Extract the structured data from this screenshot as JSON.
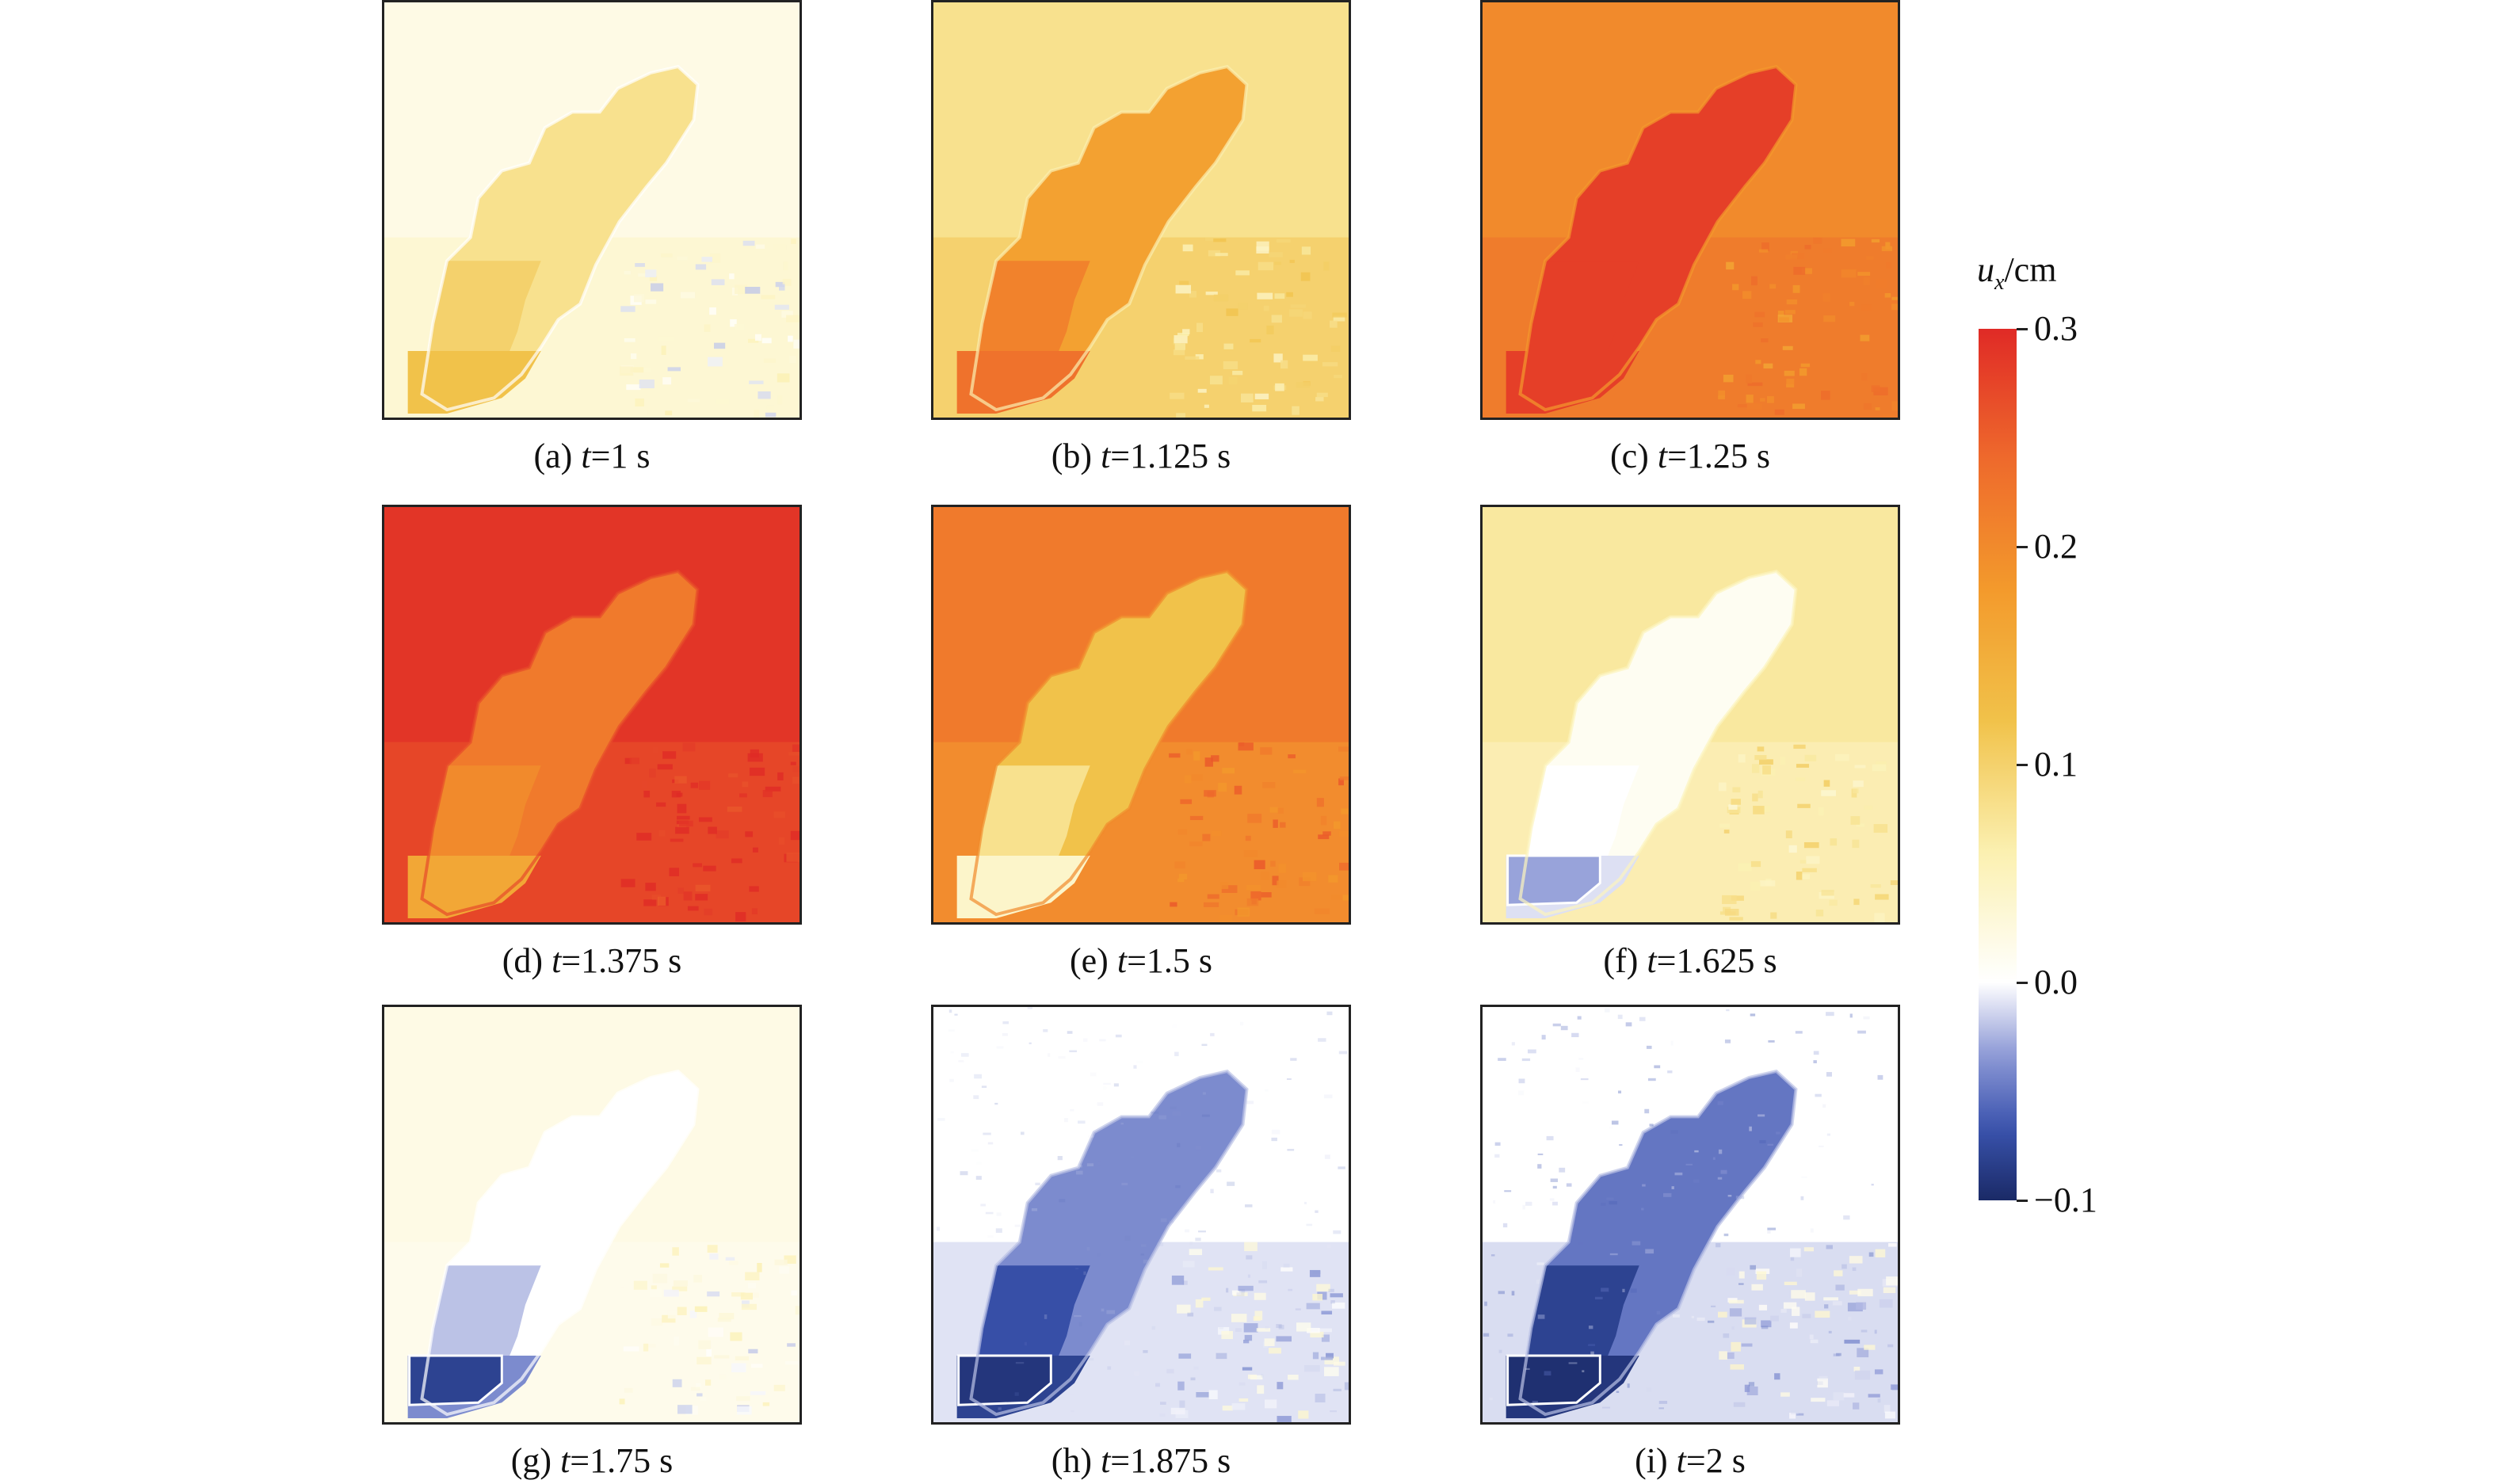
{
  "chart_data": {
    "type": "heatmap",
    "quantity_symbol": "u",
    "quantity_subscript": "x",
    "quantity_unit": "/cm",
    "colorbar": {
      "vmin": -0.1,
      "vmax": 0.3,
      "ticks": [
        0.3,
        0.2,
        0.1,
        0.0,
        -0.1
      ],
      "tick_labels": [
        "0.3",
        "0.2",
        "0.1",
        "0.0",
        "−0.1"
      ],
      "colors": [
        "#1a2a66",
        "#3a53ae",
        "#8d99d6",
        "#ffffff",
        "#fbf0b0",
        "#f1c24a",
        "#f39a2c",
        "#ee6a2c",
        "#e02a26"
      ]
    },
    "panels": [
      {
        "label": "(a)",
        "t": "1",
        "unit": "s",
        "background": 0.02,
        "region": 0.08,
        "lower": 0.1,
        "bottom": 0.12,
        "pocket": null,
        "speckle": 0.0
      },
      {
        "label": "(b)",
        "t": "1.125",
        "unit": "s",
        "background": 0.08,
        "region": 0.17,
        "lower": 0.21,
        "bottom": 0.23,
        "pocket": null,
        "speckle": 0.0
      },
      {
        "label": "(c)",
        "t": "1.25",
        "unit": "s",
        "background": 0.2,
        "region": 0.28,
        "lower": 0.28,
        "bottom": 0.28,
        "pocket": null,
        "speckle": 0.0
      },
      {
        "label": "(d)",
        "t": "1.375",
        "unit": "s",
        "background": 0.29,
        "region": 0.22,
        "lower": 0.2,
        "bottom": 0.16,
        "pocket": null,
        "speckle": 0.0
      },
      {
        "label": "(e)",
        "t": "1.5",
        "unit": "s",
        "background": 0.22,
        "region": 0.12,
        "lower": 0.08,
        "bottom": 0.04,
        "pocket": null,
        "speckle": 0.0
      },
      {
        "label": "(f)",
        "t": "1.625",
        "unit": "s",
        "background": 0.07,
        "region": 0.01,
        "lower": 0.0,
        "bottom": -0.01,
        "pocket": -0.03,
        "speckle": 0.0
      },
      {
        "label": "(g)",
        "t": "1.75",
        "unit": "s",
        "background": 0.02,
        "region": 0.0,
        "lower": -0.02,
        "bottom": -0.04,
        "pocket": -0.08,
        "speckle": 0.0
      },
      {
        "label": "(h)",
        "t": "1.875",
        "unit": "s",
        "background": 0.0,
        "region": -0.04,
        "lower": -0.07,
        "bottom": -0.08,
        "pocket": -0.09,
        "speckle": 0.2
      },
      {
        "label": "(i)",
        "t": "2",
        "unit": "s",
        "background": 0.0,
        "region": -0.05,
        "lower": -0.08,
        "bottom": -0.09,
        "pocket": -0.095,
        "speckle": 0.4
      }
    ]
  }
}
